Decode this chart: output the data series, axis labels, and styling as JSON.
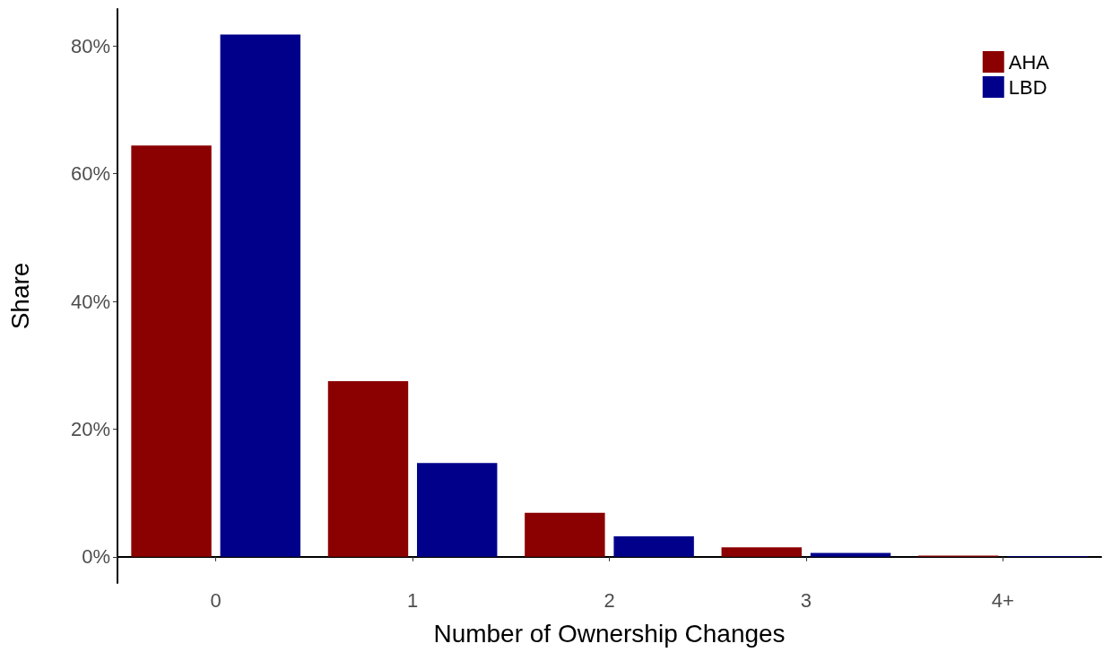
{
  "chart_data": {
    "type": "bar",
    "xlabel": "Number of Ownership Changes",
    "ylabel": "Share",
    "categories": [
      "0",
      "1",
      "2",
      "3",
      "4+"
    ],
    "series": [
      {
        "name": "AHA",
        "color": "#8b0000",
        "values": [
          64.4,
          27.5,
          6.9,
          1.5,
          0.2
        ]
      },
      {
        "name": "LBD",
        "color": "#00008b",
        "values": [
          81.8,
          14.7,
          3.2,
          0.6,
          0.1
        ]
      }
    ],
    "ylim": [
      -4.1,
      85.8
    ],
    "yticks": [
      {
        "value": 0,
        "label": "0%"
      },
      {
        "value": 20,
        "label": "20%"
      },
      {
        "value": 40,
        "label": "40%"
      },
      {
        "value": 60,
        "label": "60%"
      },
      {
        "value": 80,
        "label": "80%"
      }
    ],
    "grid": false,
    "legend": "top right"
  }
}
